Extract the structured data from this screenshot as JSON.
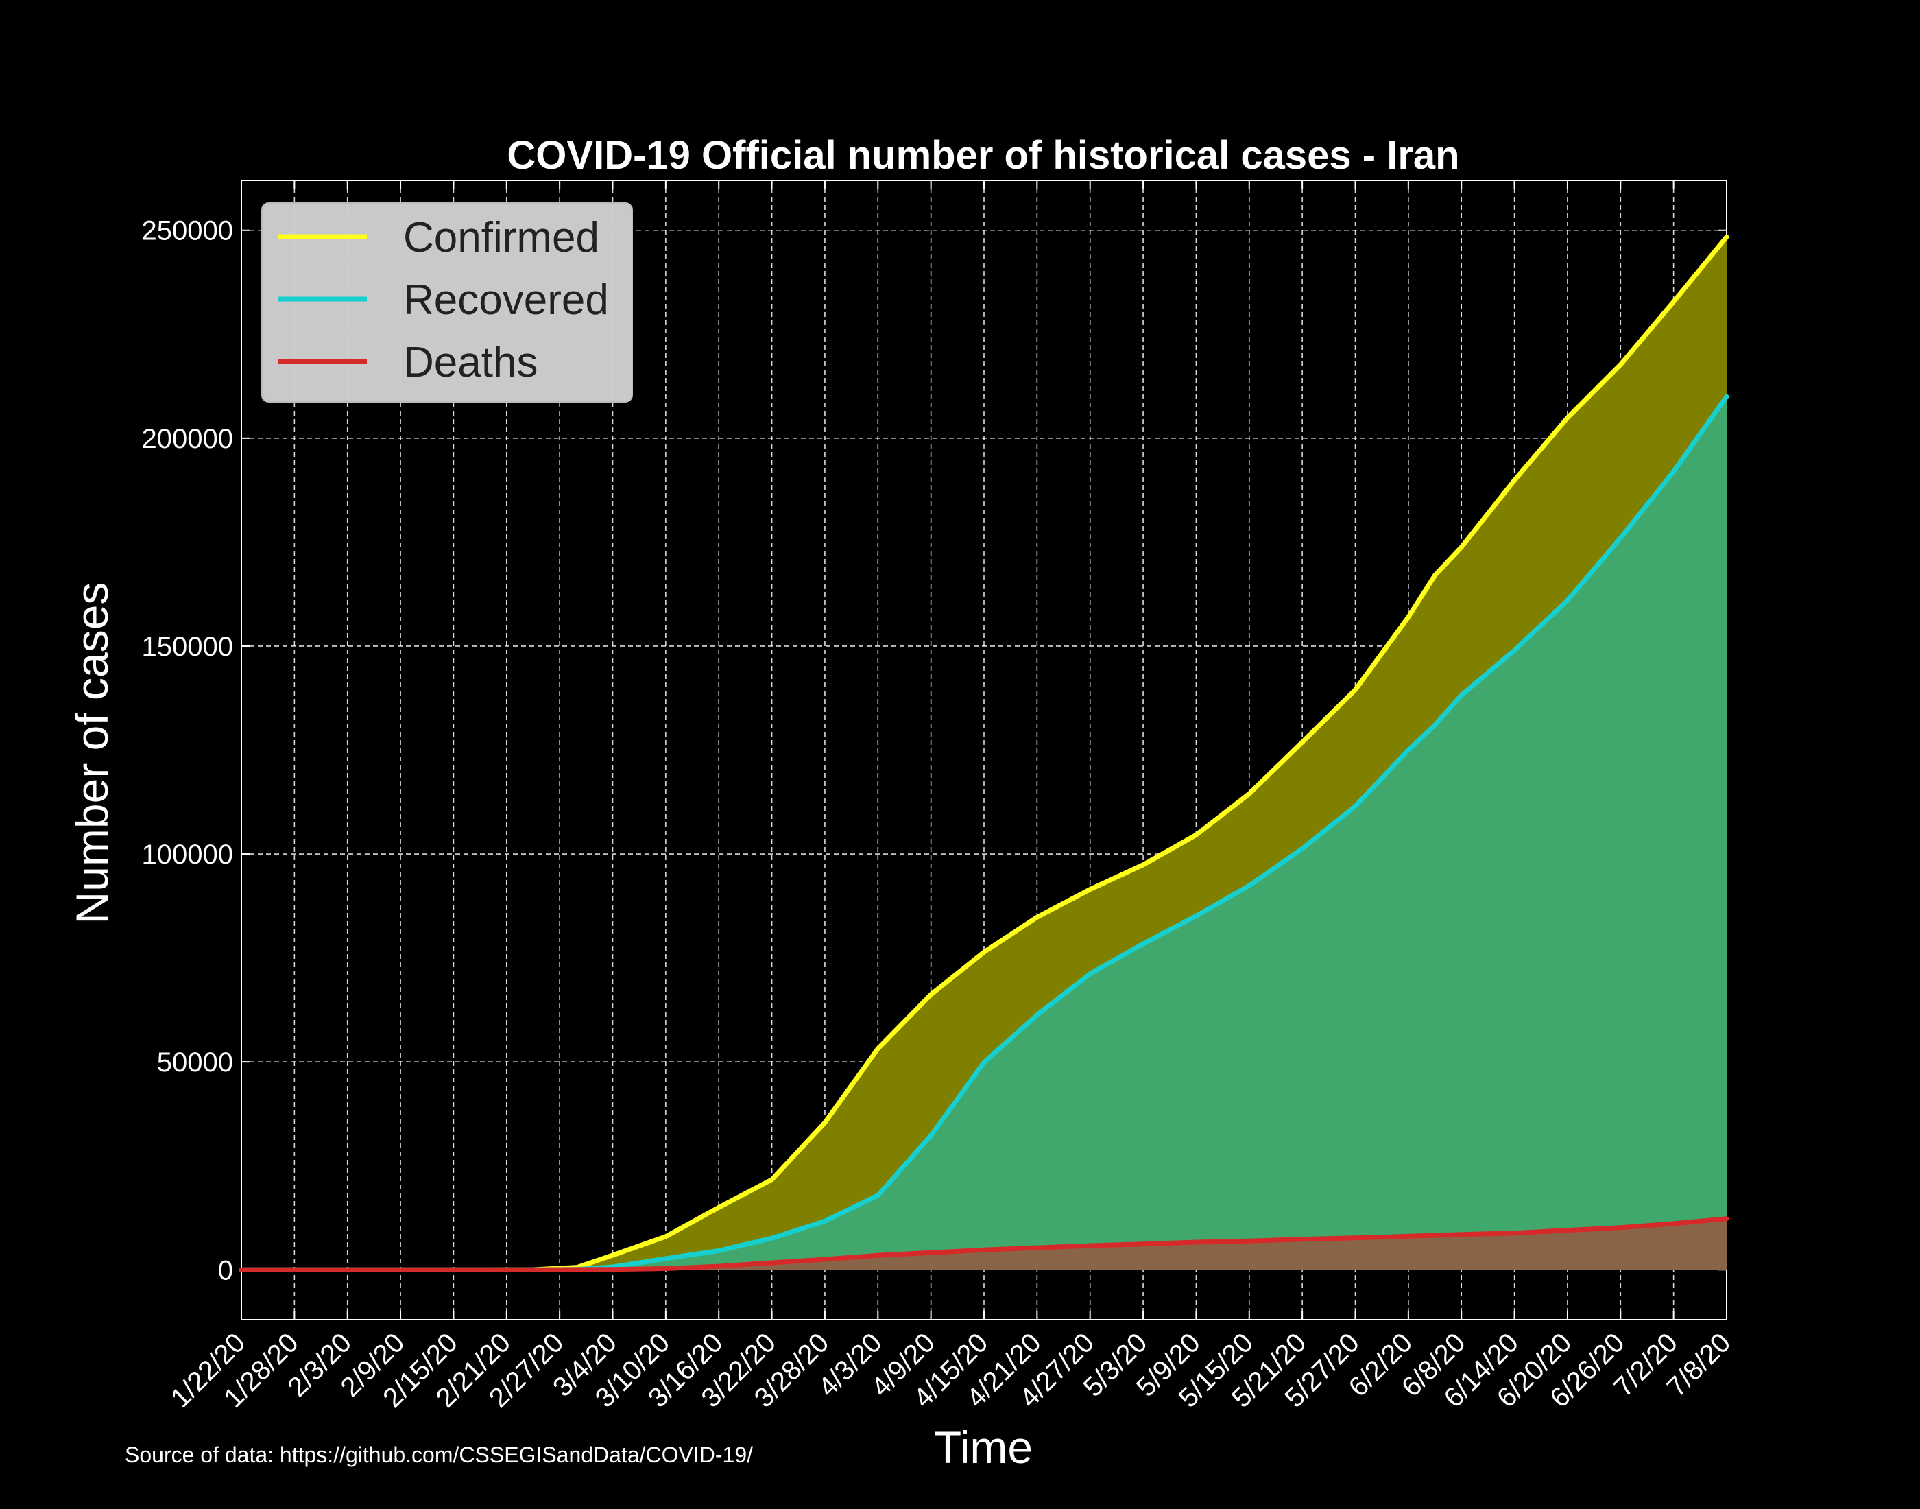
{
  "colors": {
    "background": "#000000",
    "confirmed_line": "#ffff1a",
    "confirmed_fill": "#808000",
    "recovered_line": "#17cfcf",
    "recovered_fill": "#41a86d",
    "deaths_line": "#d62a2a",
    "deaths_fill": "#8a6446",
    "grid": "#ffffff"
  },
  "source_note": "Source of data: https://github.com/CSSEGISandData/COVID-19/",
  "chart_data": {
    "type": "area",
    "title": "COVID-19 Official number of historical cases - Iran",
    "xlabel": "Time",
    "ylabel": "Number of cases",
    "ylim": [
      -12000,
      262000
    ],
    "yticks": [
      0,
      50000,
      100000,
      150000,
      200000,
      250000
    ],
    "grid": true,
    "legend_position": "top-left",
    "x_ticks": [
      "1/22/20",
      "1/28/20",
      "2/3/20",
      "2/9/20",
      "2/15/20",
      "2/21/20",
      "2/27/20",
      "3/4/20",
      "3/10/20",
      "3/16/20",
      "3/22/20",
      "3/28/20",
      "4/3/20",
      "4/9/20",
      "4/15/20",
      "4/21/20",
      "4/27/20",
      "5/3/20",
      "5/9/20",
      "5/15/20",
      "5/21/20",
      "5/27/20",
      "6/2/20",
      "6/8/20",
      "6/14/20",
      "6/20/20",
      "6/26/20",
      "7/2/20",
      "7/8/20"
    ],
    "x": [
      "1/22/20",
      "2/19/20",
      "2/24/20",
      "2/29/20",
      "3/4/20",
      "3/10/20",
      "3/16/20",
      "3/22/20",
      "3/28/20",
      "4/3/20",
      "4/9/20",
      "4/15/20",
      "4/21/20",
      "4/27/20",
      "5/3/20",
      "5/9/20",
      "5/15/20",
      "5/21/20",
      "5/27/20",
      "6/2/20",
      "6/5/20",
      "6/8/20",
      "6/14/20",
      "6/20/20",
      "6/26/20",
      "7/2/20",
      "7/8/20"
    ],
    "series": [
      {
        "name": "Confirmed",
        "values": [
          0,
          0,
          50,
          600,
          3500,
          8000,
          15000,
          21700,
          35400,
          53200,
          66200,
          76400,
          84800,
          91500,
          97400,
          104600,
          114500,
          126900,
          139500,
          157000,
          167000,
          173800,
          189900,
          204900,
          217700,
          232800,
          248400
        ]
      },
      {
        "name": "Recovered",
        "values": [
          0,
          0,
          0,
          100,
          700,
          2700,
          4600,
          7600,
          11700,
          17900,
          32300,
          49900,
          61300,
          71200,
          78400,
          85100,
          92400,
          101300,
          111500,
          125000,
          131000,
          138200,
          149000,
          161000,
          176000,
          192000,
          210000
        ]
      },
      {
        "name": "Deaths",
        "values": [
          0,
          0,
          12,
          54,
          92,
          291,
          853,
          1685,
          2517,
          3452,
          4110,
          4777,
          5297,
          5806,
          6203,
          6640,
          6937,
          7359,
          7677,
          8071,
          8281,
          8506,
          8837,
          9507,
          10130,
          11106,
          12305
        ]
      }
    ]
  }
}
